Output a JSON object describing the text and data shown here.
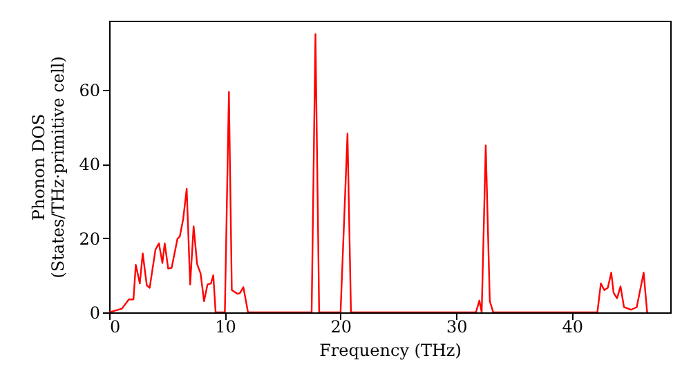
{
  "chart_data": {
    "type": "line",
    "xlabel": "Frequency (THz)",
    "ylabel": "Phonon DOS\n(States/THz·primitive cell)",
    "xlim": [
      0,
      48.5
    ],
    "ylim": [
      0,
      78.6
    ],
    "xticks": [
      0,
      10,
      20,
      30,
      40
    ],
    "yticks": [
      0,
      20,
      40,
      60
    ],
    "grid": false,
    "marker": "none",
    "line_style": "solid",
    "series": [
      {
        "color": "#ff0000",
        "x": [
          0,
          1.1,
          1.7,
          2.1,
          2.3,
          2.65,
          2.9,
          3.25,
          3.5,
          4.0,
          4.3,
          4.6,
          4.8,
          5.1,
          5.4,
          5.9,
          6.1,
          6.4,
          6.7,
          7.0,
          7.3,
          7.6,
          7.9,
          8.2,
          8.5,
          8.8,
          9.0,
          9.2,
          10.0,
          10.35,
          10.6,
          11.1,
          11.3,
          11.6,
          12.0,
          17.5,
          17.83,
          18.15,
          20.0,
          20.6,
          20.9,
          31.7,
          32.0,
          32.2,
          32.55,
          32.9,
          33.2,
          42.2,
          42.5,
          42.8,
          43.1,
          43.4,
          43.6,
          43.9,
          44.2,
          44.5,
          45.1,
          45.6,
          46.2,
          46.5,
          46.6
        ],
        "values": [
          0,
          1.0,
          3.5,
          3.5,
          12.8,
          7.8,
          15.9,
          7.3,
          6.6,
          16.9,
          18.6,
          13.3,
          18.6,
          11.8,
          12,
          19.8,
          20.4,
          25.2,
          33.3,
          7.5,
          23.2,
          13,
          10.5,
          3,
          7.5,
          7.8,
          10,
          0,
          0,
          59.4,
          6,
          5,
          5.2,
          6.8,
          0,
          0,
          75,
          0,
          0,
          48.2,
          0,
          0,
          3.2,
          0,
          45,
          3,
          0,
          0,
          7.8,
          6,
          6.6,
          10.7,
          5.3,
          3.8,
          7.0,
          1.4,
          0.7,
          1.4,
          10.7,
          0,
          0
        ]
      }
    ]
  }
}
